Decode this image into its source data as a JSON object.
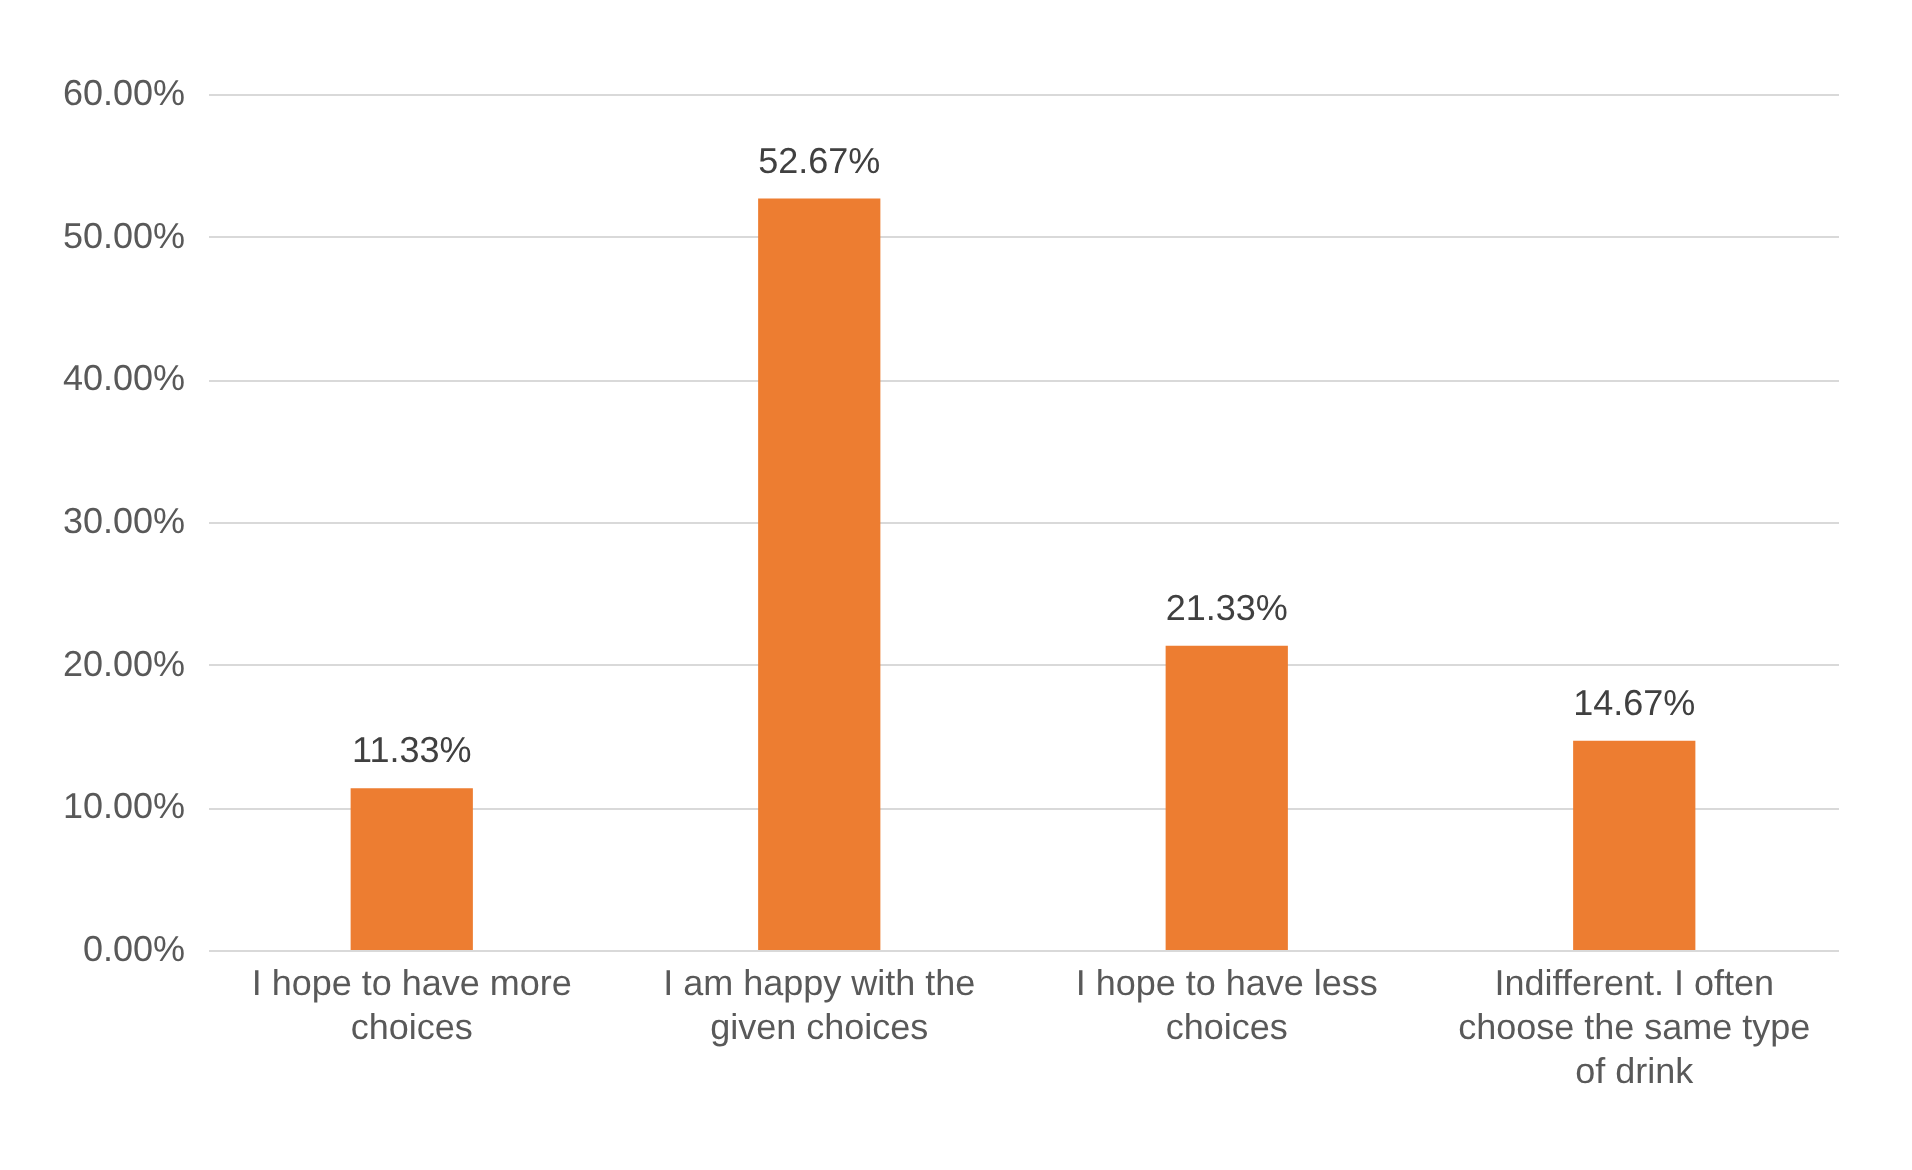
{
  "chart_data": {
    "type": "bar",
    "categories": [
      "I hope to have more choices",
      "I am happy with the given choices",
      "I hope to have less choices",
      "Indifferent. I often choose the same type of drink"
    ],
    "values": [
      11.33,
      52.67,
      21.33,
      14.67
    ],
    "value_labels": [
      "11.33%",
      "52.67%",
      "21.33%",
      "14.67%"
    ],
    "color": "#ed7d31",
    "ylim": [
      0,
      60
    ],
    "yticks": [
      {
        "value": 0,
        "label": "0.00%"
      },
      {
        "value": 10,
        "label": "10.00%"
      },
      {
        "value": 20,
        "label": "20.00%"
      },
      {
        "value": 30,
        "label": "30.00%"
      },
      {
        "value": 40,
        "label": "40.00%"
      },
      {
        "value": 50,
        "label": "50.00%"
      },
      {
        "value": 60,
        "label": "60.00%"
      }
    ],
    "grid": "y"
  }
}
